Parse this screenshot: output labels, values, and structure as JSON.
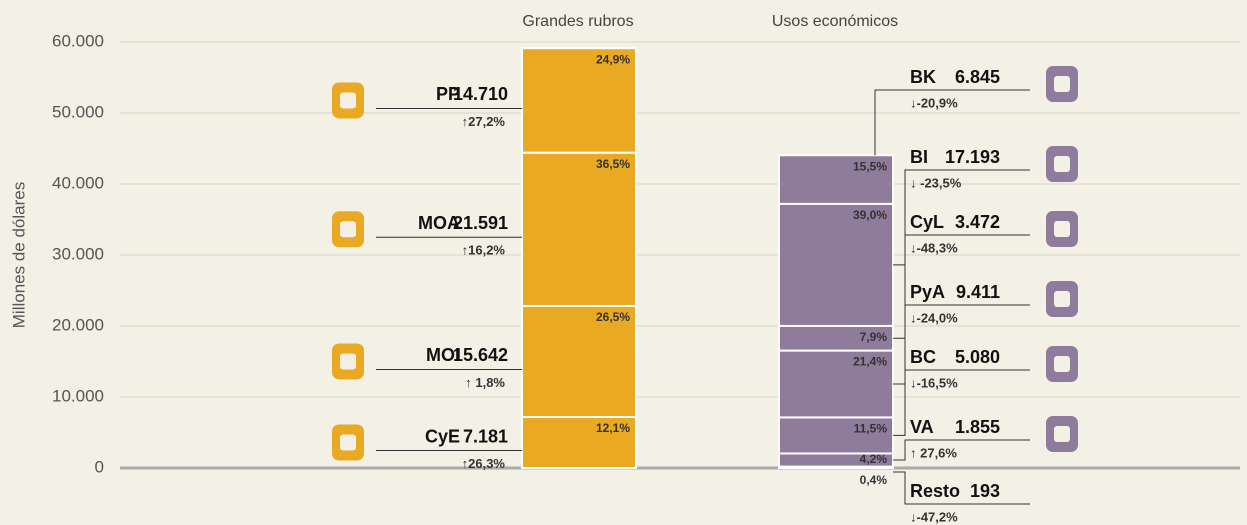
{
  "chart_data": {
    "type": "stacked-column",
    "y_label": "Millones de dólares",
    "ylim": [
      0,
      60000
    ],
    "yticks": [
      {
        "value": 0,
        "label": "0"
      },
      {
        "value": 10000,
        "label": "10.000"
      },
      {
        "value": 20000,
        "label": "20.000"
      },
      {
        "value": 30000,
        "label": "30.000"
      },
      {
        "value": 40000,
        "label": "40.000"
      },
      {
        "value": 50000,
        "label": "50.000"
      },
      {
        "value": 60000,
        "label": "60.000"
      }
    ],
    "grid": true,
    "series": [
      {
        "name": "Grandes rubros",
        "color": "#e9a923",
        "categories": [
          "CyE",
          "MOI",
          "MOA",
          "PP"
        ],
        "values": [
          7181,
          15642,
          21591,
          14710
        ],
        "value_labels": [
          "7.181",
          "15.642",
          "21.591",
          "14.710"
        ],
        "share_labels": [
          "12,1%",
          "26,5%",
          "36,5%",
          "24,9%"
        ],
        "change_labels": [
          "↑26,3%",
          "↑ 1,8%",
          "↑16,2%",
          "↑27,2%"
        ],
        "change_colors": [
          "#2e8b3e",
          "#2e8b3e",
          "#2e8b3e",
          "#2e8b3e"
        ]
      },
      {
        "name": "Usos económicos",
        "color": "#8f7b9b",
        "categories": [
          "Resto",
          "VA",
          "BC",
          "PyA",
          "CyL",
          "BI",
          "BK"
        ],
        "values": [
          193,
          1855,
          5080,
          9411,
          3472,
          17193,
          6845
        ],
        "value_labels": [
          "193",
          "1.855",
          "5.080",
          "9.411",
          "3.472",
          "17.193",
          "6.845"
        ],
        "share_labels": [
          "0,4%",
          "4,2%",
          "11,5%",
          "21,4%",
          "7,9%",
          "39,0%",
          "15,5%"
        ],
        "change_labels": [
          "↓-47,2%",
          "↑ 27,6%",
          "↓-16,5%",
          "↓-24,0%",
          "↓-48,3%",
          "↓ -23,5%",
          "↓-20,9%"
        ],
        "change_colors": [
          "#c0394b",
          "#2e8b3e",
          "#c0394b",
          "#c0394b",
          "#c0394b",
          "#c0394b",
          "#c0394b"
        ]
      }
    ]
  }
}
